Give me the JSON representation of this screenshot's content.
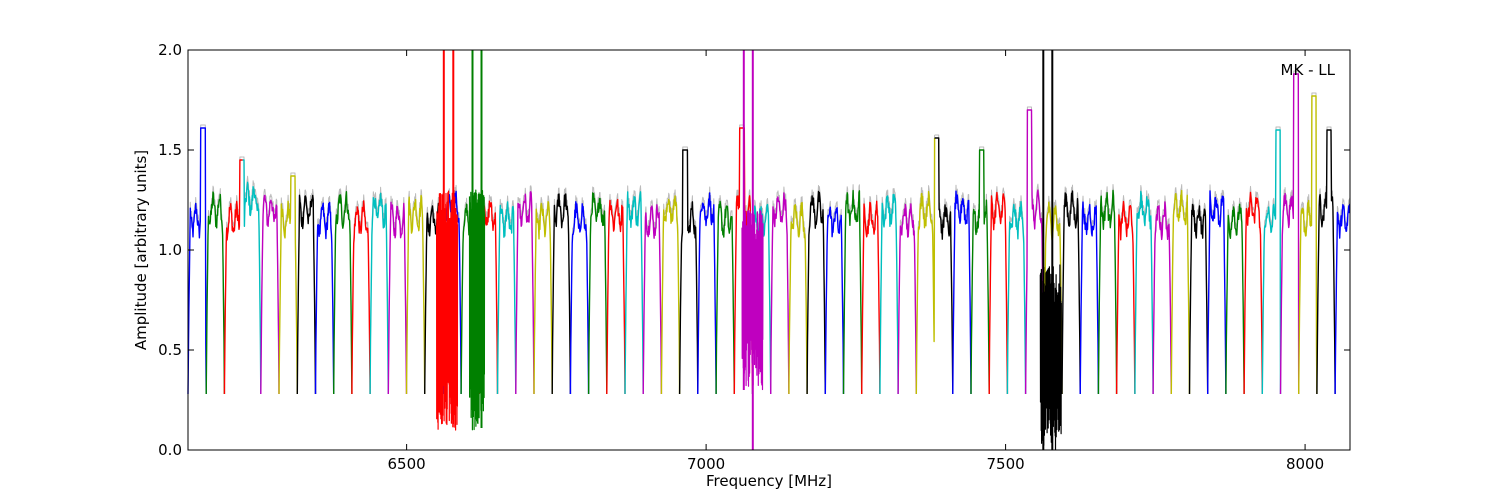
{
  "chart_data": {
    "type": "line",
    "annotation": "MK - LL",
    "xlabel": "Frequency [MHz]",
    "ylabel": "Amplitude [arbitrary units]",
    "xlim": [
      6135,
      8075
    ],
    "ylim": [
      0,
      2.0
    ],
    "x_ticks": [
      6500,
      7000,
      7500,
      8000
    ],
    "y_ticks": [
      0.0,
      0.5,
      1.0,
      1.5,
      2.0
    ],
    "y_tick_labels": [
      "0.0",
      "0.5",
      "1.0",
      "1.5",
      "2.0"
    ],
    "grid": false,
    "colors": [
      "#0000ff",
      "#008000",
      "#ff0000",
      "#00bfbf",
      "#bf00bf",
      "#bfbf00",
      "#000000"
    ],
    "background_series_color": "#bbbbbb",
    "subband_start_mhz": 6135,
    "subband_width_mhz": 30.4,
    "subband_count": 64,
    "subband_plateau_levels": [
      1.15,
      1.2,
      1.15,
      1.25,
      1.2,
      1.15,
      1.2,
      1.15,
      1.2,
      1.15,
      1.2,
      1.15,
      1.18,
      1.15,
      1.2,
      1.15,
      1.18,
      1.15,
      1.2,
      1.15,
      1.2,
      1.15,
      1.2,
      1.18,
      1.2,
      1.15,
      1.2,
      1.15,
      1.2,
      1.15,
      1.2,
      1.15,
      1.2,
      1.15,
      1.2,
      1.15,
      1.2,
      1.15,
      1.2,
      1.15,
      1.2,
      1.15,
      1.2,
      1.15,
      1.2,
      1.15,
      1.2,
      1.15,
      1.2,
      1.15,
      1.2,
      1.15,
      1.2,
      1.15,
      1.2,
      1.15,
      1.2,
      1.15,
      1.2,
      1.15,
      1.2,
      1.15,
      1.2,
      1.15
    ],
    "subband_edge_minimum": 0.28,
    "peaks": [
      {
        "x": 6160,
        "y": 1.61
      },
      {
        "x": 6225,
        "y": 1.45
      },
      {
        "x": 6310,
        "y": 1.37
      },
      {
        "x": 6965,
        "y": 1.5
      },
      {
        "x": 7060,
        "y": 1.61
      },
      {
        "x": 7385,
        "y": 1.56
      },
      {
        "x": 7460,
        "y": 1.5
      },
      {
        "x": 7540,
        "y": 1.7
      },
      {
        "x": 7955,
        "y": 1.6
      },
      {
        "x": 7985,
        "y": 1.88
      },
      {
        "x": 8015,
        "y": 1.77
      },
      {
        "x": 8040,
        "y": 1.6
      }
    ],
    "rfi_spikes": [
      {
        "x": 6562,
        "y_min": 0.58,
        "y_max": 2.0,
        "color": "#ff0000"
      },
      {
        "x": 6578,
        "y_min": 0.13,
        "y_max": 2.0,
        "color": "#ff0000"
      },
      {
        "x": 6610,
        "y_min": 0.2,
        "y_max": 2.0,
        "color": "#008000"
      },
      {
        "x": 6625,
        "y_min": 0.11,
        "y_max": 2.0,
        "color": "#008000"
      },
      {
        "x": 7063,
        "y_min": 0.3,
        "y_max": 2.0,
        "color": "#bf00bf"
      },
      {
        "x": 7078,
        "y_min": 0.0,
        "y_max": 2.0,
        "color": "#bf00bf"
      },
      {
        "x": 7563,
        "y_min": 0.0,
        "y_max": 2.0,
        "color": "#000000"
      },
      {
        "x": 7578,
        "y_min": 0.0,
        "y_max": 2.0,
        "color": "#000000"
      }
    ],
    "rfi_noise_bands": [
      {
        "x_start": 6550,
        "x_end": 6585,
        "y_min": 0.1,
        "y_max": 1.3,
        "color": "#ff0000"
      },
      {
        "x_start": 6605,
        "x_end": 6630,
        "y_min": 0.1,
        "y_max": 1.3,
        "color": "#008000"
      },
      {
        "x_start": 7060,
        "x_end": 7095,
        "y_min": 0.3,
        "y_max": 1.2,
        "color": "#bf00bf"
      },
      {
        "x_start": 7558,
        "x_end": 7593,
        "y_min": 0.0,
        "y_max": 0.93,
        "color": "#000000"
      }
    ]
  }
}
